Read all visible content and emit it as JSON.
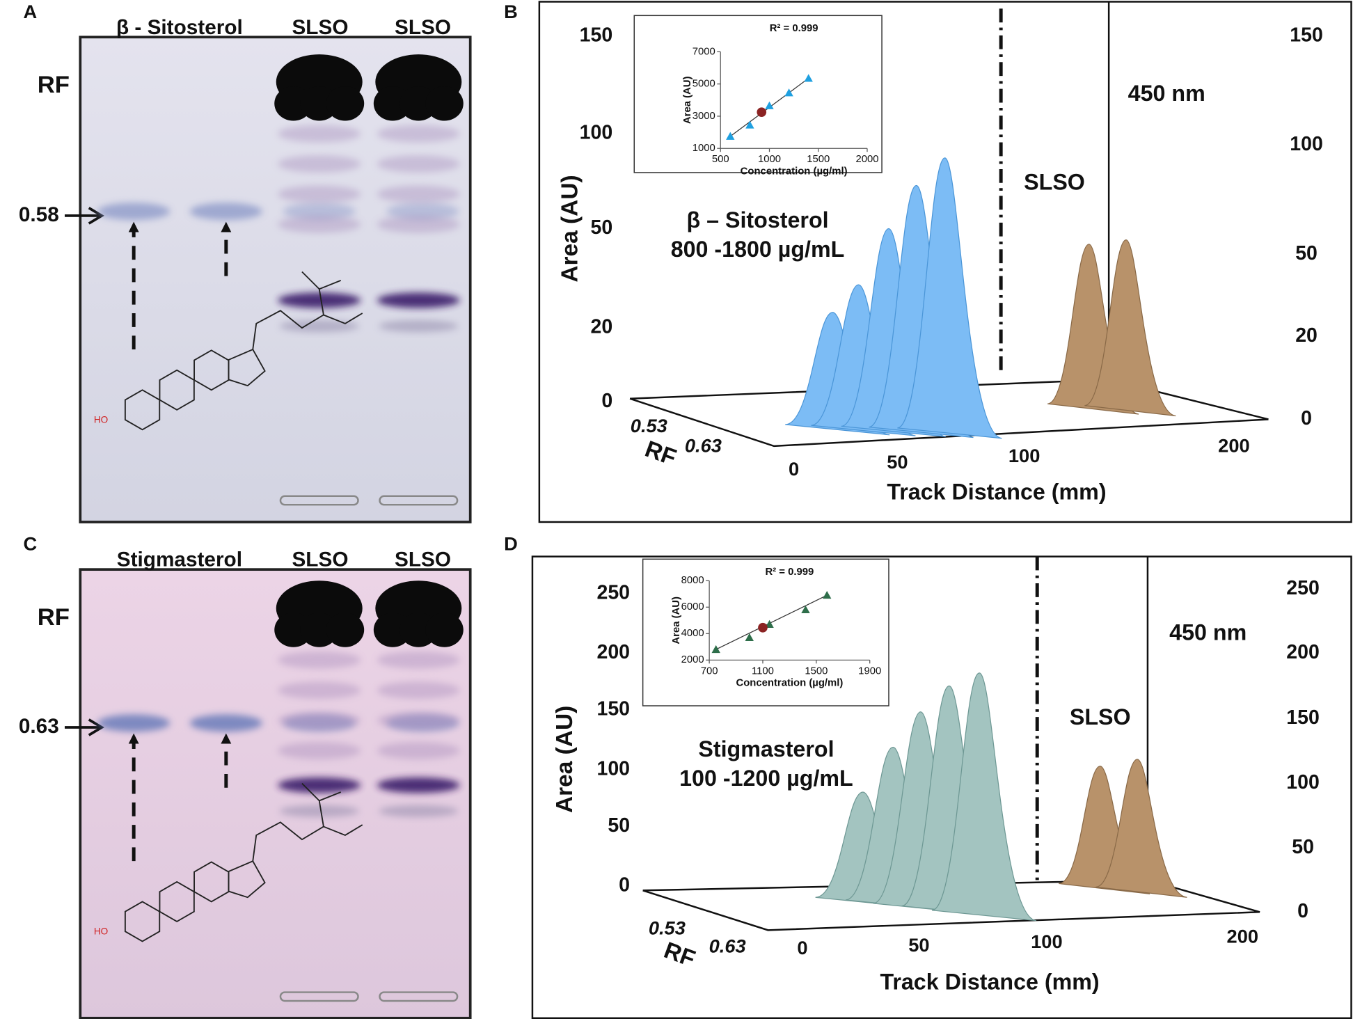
{
  "panels": {
    "A": {
      "label": "A",
      "lanes": [
        "β - Sitosterol",
        "SLSO",
        "SLSO"
      ],
      "rf_label": "RF",
      "rf_value": "0.58",
      "hydroxyl_label": "HO"
    },
    "B": {
      "label": "B",
      "y_axis_label": "Area (AU)",
      "left_ticks": [
        150,
        100,
        50,
        20,
        0
      ],
      "right_ticks": [
        150,
        100,
        50,
        20,
        0
      ],
      "rf_axis_label": "RF",
      "rf_ticks": [
        0.53,
        0.63
      ],
      "x_axis_label": "Track Distance (mm)",
      "x_ticks": [
        0,
        50,
        100,
        200
      ],
      "wavelength": "450 nm",
      "sample": "SLSO",
      "standard": "β – Sitosterol",
      "range": "800 -1800 µg/mL",
      "inset": {
        "r2": "R² = 0.999",
        "x_label": "Concentration (µg/ml)",
        "y_label": "Area (AU)",
        "xlim": [
          500,
          2000
        ],
        "xticks": [
          500,
          1000,
          1500,
          2000
        ],
        "ylim": [
          1000,
          7000
        ],
        "yticks": [
          1000,
          3000,
          5000,
          7000
        ],
        "marker_color": "#1fa0e0",
        "sample_color": "#8b2323",
        "x": [
          600,
          800,
          1000,
          1200,
          1400
        ],
        "y": [
          1750,
          2450,
          3650,
          4450,
          5350
        ],
        "sample_x": 920,
        "sample_y": 3250
      }
    },
    "C": {
      "label": "C",
      "lanes": [
        "Stigmasterol",
        "SLSO",
        "SLSO"
      ],
      "rf_label": "RF",
      "rf_value": "0.63",
      "hydroxyl_label": "HO"
    },
    "D": {
      "label": "D",
      "y_axis_label": "Area (AU)",
      "left_ticks": [
        250,
        200,
        150,
        100,
        50,
        0
      ],
      "right_ticks": [
        250,
        200,
        150,
        100,
        50,
        0
      ],
      "rf_axis_label": "RF",
      "rf_ticks": [
        0.53,
        0.63
      ],
      "x_axis_label": "Track Distance (mm)",
      "x_ticks": [
        0,
        50,
        100,
        200
      ],
      "wavelength": "450 nm",
      "sample": "SLSO",
      "standard": "Stigmasterol",
      "range": "100 -1200 µg/mL",
      "inset": {
        "r2": "R² = 0.999",
        "x_label": "Concentration (µg/ml)",
        "y_label": "Area (AU)",
        "xlim": [
          700,
          1900
        ],
        "xticks": [
          700,
          1100,
          1500,
          1900
        ],
        "ylim": [
          2000,
          8000
        ],
        "yticks": [
          2000,
          4000,
          6000,
          8000
        ],
        "marker_color": "#2e6e4a",
        "sample_color": "#8b2323",
        "x": [
          750,
          1000,
          1150,
          1420,
          1580
        ],
        "y": [
          2800,
          3700,
          4700,
          5800,
          6900
        ],
        "sample_x": 1100,
        "sample_y": 4450
      }
    }
  }
}
